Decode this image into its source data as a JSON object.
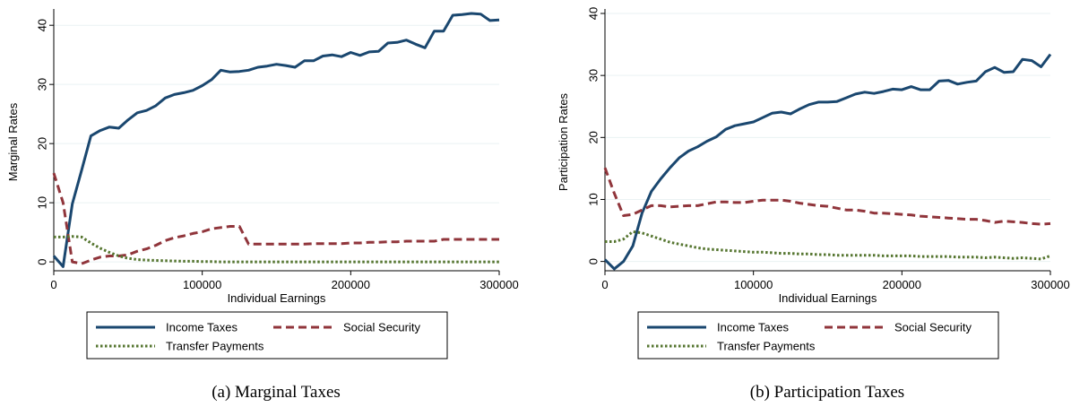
{
  "legend": {
    "income": "Income Taxes",
    "social": "Social Security",
    "transfer": "Transfer Payments"
  },
  "colors": {
    "income": "#1a476f",
    "social": "#90353b",
    "transfer": "#55752f",
    "grid": "#eaf2f3"
  },
  "chart_data": [
    {
      "type": "line",
      "caption": "(a)  Marginal Taxes",
      "xlabel": "Individual Earnings",
      "ylabel": "Marginal Rates",
      "xlim": [
        0,
        300000
      ],
      "ylim": [
        -1.5,
        42
      ],
      "xticks": [
        0,
        100000,
        200000,
        300000
      ],
      "yticks": [
        0,
        10,
        20,
        30,
        40
      ],
      "grid": true,
      "legend_position": "bottom",
      "x": [
        0,
        6250,
        12500,
        18750,
        25000,
        31250,
        37500,
        43750,
        50000,
        56250,
        62500,
        68750,
        75000,
        81250,
        87500,
        93750,
        100000,
        106250,
        112500,
        118750,
        125000,
        131250,
        137500,
        143750,
        150000,
        156250,
        162500,
        168750,
        175000,
        181250,
        187500,
        193750,
        200000,
        206250,
        212500,
        218750,
        225000,
        231250,
        237500,
        243750,
        250000,
        256250,
        262500,
        268750,
        275000,
        281250,
        287500,
        293750,
        300000
      ],
      "series": [
        {
          "name": "Income Taxes",
          "key": "income",
          "style": "solid",
          "values": [
            1.0,
            -0.8,
            9.8,
            15.5,
            21.3,
            22.2,
            22.8,
            22.6,
            24.0,
            25.2,
            25.6,
            26.4,
            27.7,
            28.3,
            28.6,
            29.0,
            29.8,
            30.8,
            32.4,
            32.1,
            32.2,
            32.4,
            32.9,
            33.1,
            33.4,
            33.2,
            32.9,
            34.0,
            34.0,
            34.8,
            35.0,
            34.7,
            35.4,
            34.9,
            35.5,
            35.6,
            37.0,
            37.1,
            37.5,
            36.8,
            36.2,
            39.0,
            39.0,
            41.7,
            41.8,
            42.0,
            41.9,
            40.8,
            40.9
          ]
        },
        {
          "name": "Social Security",
          "key": "social",
          "style": "dashed",
          "values": [
            15.0,
            10.0,
            0.0,
            -0.3,
            0.3,
            0.8,
            1.0,
            1.0,
            1.2,
            1.8,
            2.2,
            2.8,
            3.6,
            4.1,
            4.4,
            4.8,
            5.1,
            5.6,
            5.8,
            6.0,
            6.0,
            3.0,
            3.0,
            3.0,
            3.0,
            3.0,
            3.0,
            3.0,
            3.1,
            3.1,
            3.1,
            3.1,
            3.2,
            3.2,
            3.3,
            3.3,
            3.4,
            3.4,
            3.5,
            3.5,
            3.5,
            3.5,
            3.8,
            3.8,
            3.8,
            3.8,
            3.8,
            3.8,
            3.8
          ]
        },
        {
          "name": "Transfer Payments",
          "key": "transfer",
          "style": "dotted",
          "values": [
            4.2,
            4.2,
            4.3,
            4.2,
            3.2,
            2.3,
            1.6,
            1.0,
            0.6,
            0.4,
            0.3,
            0.25,
            0.2,
            0.15,
            0.1,
            0.1,
            0.05,
            0.05,
            0.0,
            0.0,
            0.0,
            0.0,
            0.0,
            0.0,
            0.0,
            0.0,
            0.0,
            0.0,
            0.0,
            0.0,
            0.0,
            0.0,
            0.0,
            0.0,
            0.0,
            0.0,
            0.0,
            0.0,
            0.0,
            0.0,
            0.0,
            0.0,
            0.0,
            0.0,
            0.0,
            0.0,
            0.0,
            0.0,
            0.0
          ]
        }
      ]
    },
    {
      "type": "line",
      "caption": "(b)  Participation Taxes",
      "xlabel": "Individual Earnings",
      "ylabel": "Participation Rates",
      "xlim": [
        0,
        300000
      ],
      "ylim": [
        -1.5,
        40
      ],
      "xticks": [
        0,
        100000,
        200000,
        300000
      ],
      "yticks": [
        0,
        10,
        20,
        30,
        40
      ],
      "grid": true,
      "legend_position": "bottom",
      "x": [
        0,
        6250,
        12500,
        18750,
        25000,
        31250,
        37500,
        43750,
        50000,
        56250,
        62500,
        68750,
        75000,
        81250,
        87500,
        93750,
        100000,
        106250,
        112500,
        118750,
        125000,
        131250,
        137500,
        143750,
        150000,
        156250,
        162500,
        168750,
        175000,
        181250,
        187500,
        193750,
        200000,
        206250,
        212500,
        218750,
        225000,
        231250,
        237500,
        243750,
        250000,
        256250,
        262500,
        268750,
        275000,
        281250,
        287500,
        293750,
        300000
      ],
      "series": [
        {
          "name": "Income Taxes",
          "key": "income",
          "style": "solid",
          "values": [
            0.3,
            -1.2,
            0.0,
            2.5,
            7.8,
            11.3,
            13.3,
            15.1,
            16.7,
            17.8,
            18.5,
            19.4,
            20.1,
            21.3,
            21.9,
            22.2,
            22.5,
            23.2,
            23.9,
            24.1,
            23.8,
            24.6,
            25.3,
            25.7,
            25.7,
            25.8,
            26.4,
            27.0,
            27.3,
            27.1,
            27.4,
            27.8,
            27.7,
            28.2,
            27.7,
            27.7,
            29.1,
            29.2,
            28.6,
            28.9,
            29.1,
            30.6,
            31.3,
            30.5,
            30.6,
            32.6,
            32.4,
            31.4,
            33.4
          ]
        },
        {
          "name": "Social Security",
          "key": "social",
          "style": "dashed",
          "values": [
            15.1,
            11.0,
            7.4,
            7.6,
            8.3,
            9.0,
            9.0,
            8.8,
            8.9,
            9.0,
            9.0,
            9.3,
            9.6,
            9.6,
            9.5,
            9.5,
            9.7,
            9.9,
            9.9,
            9.9,
            9.7,
            9.4,
            9.2,
            9.0,
            8.9,
            8.6,
            8.3,
            8.3,
            8.1,
            7.8,
            7.8,
            7.7,
            7.6,
            7.5,
            7.3,
            7.2,
            7.1,
            7.0,
            6.9,
            6.8,
            6.8,
            6.6,
            6.3,
            6.5,
            6.4,
            6.3,
            6.1,
            6.0,
            6.1
          ]
        },
        {
          "name": "Transfer Payments",
          "key": "transfer",
          "style": "dotted",
          "values": [
            3.2,
            3.2,
            3.6,
            4.8,
            4.6,
            4.1,
            3.6,
            3.1,
            2.8,
            2.5,
            2.2,
            2.0,
            1.9,
            1.8,
            1.7,
            1.6,
            1.5,
            1.5,
            1.4,
            1.3,
            1.3,
            1.2,
            1.2,
            1.1,
            1.1,
            1.0,
            1.0,
            1.0,
            1.0,
            1.0,
            0.9,
            0.9,
            0.9,
            0.9,
            0.8,
            0.8,
            0.8,
            0.8,
            0.7,
            0.7,
            0.7,
            0.6,
            0.7,
            0.6,
            0.5,
            0.6,
            0.5,
            0.4,
            0.9
          ]
        }
      ]
    }
  ]
}
